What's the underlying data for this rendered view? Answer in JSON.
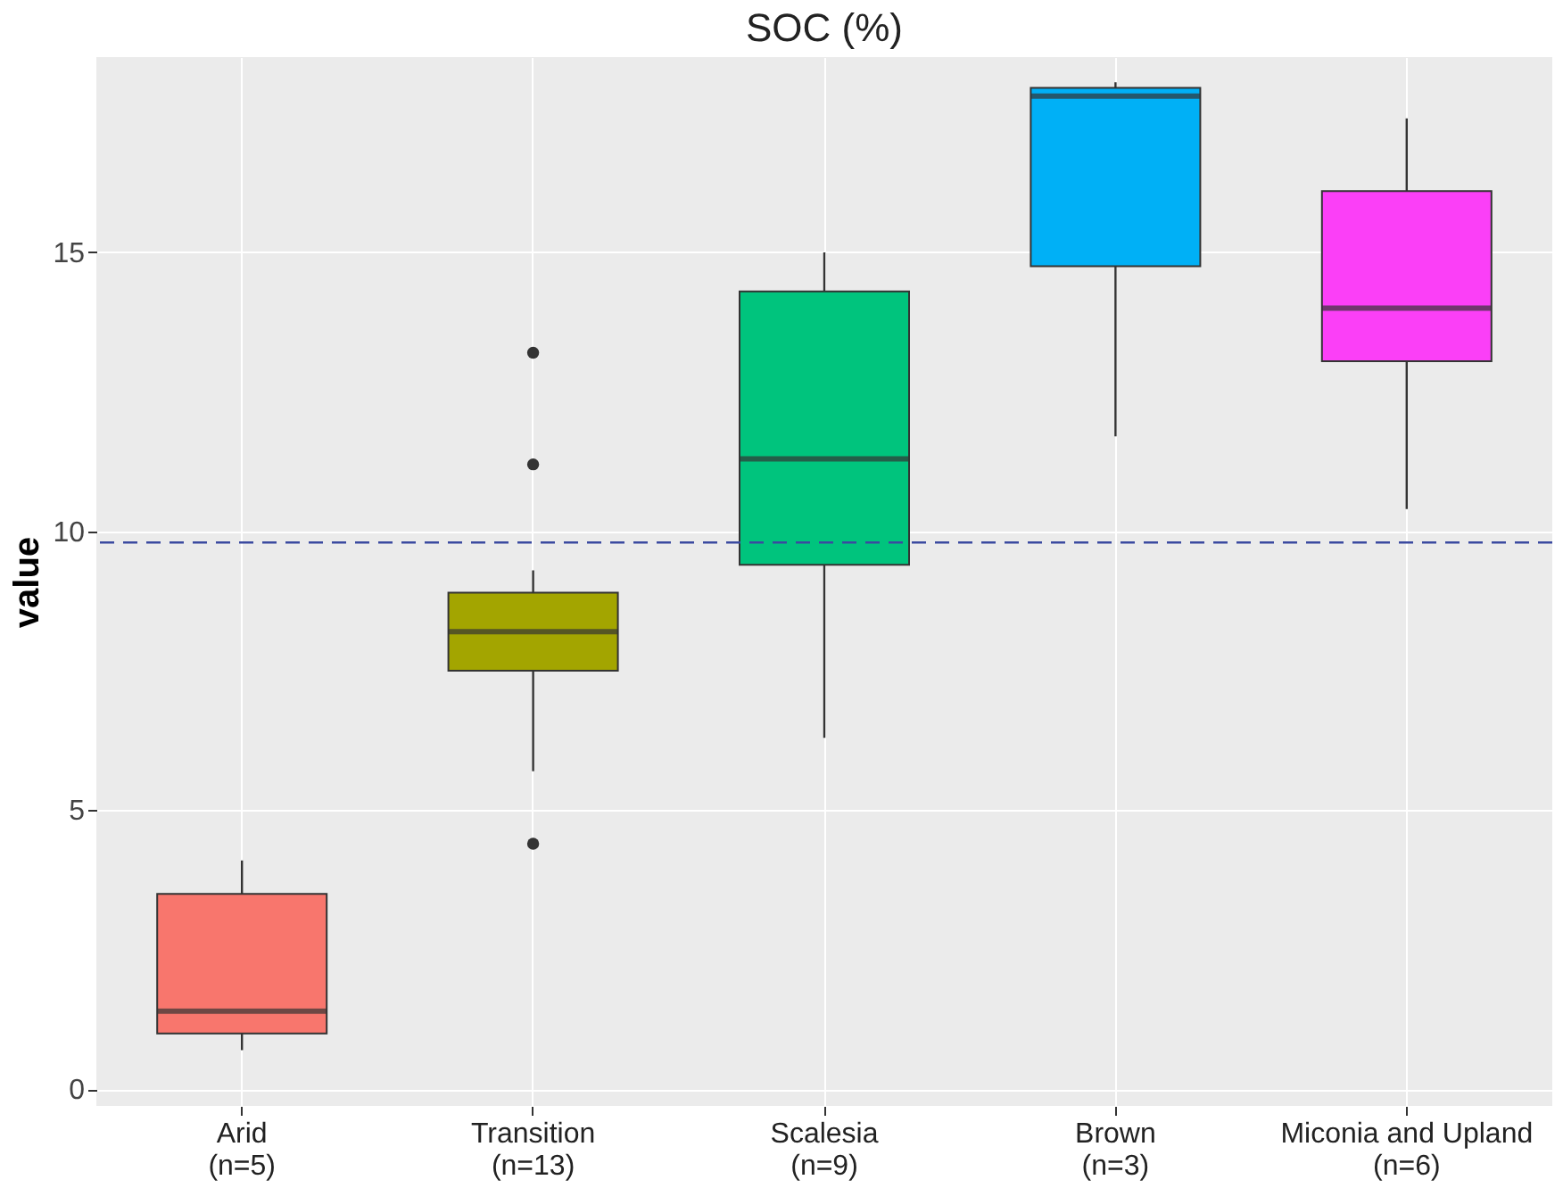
{
  "chart_data": {
    "type": "box",
    "title": "SOC (%)",
    "ylabel": "value",
    "categories": [
      "Arid\n(n=5)",
      "Transition\n(n=13)",
      "Scalesia\n(n=9)",
      "Brown\n(n=3)",
      "Miconia and Upland\n(n=6)"
    ],
    "colors": [
      "#f8766d",
      "#a3a500",
      "#00c47d",
      "#00b0f6",
      "#fb3ff7"
    ],
    "boxes": [
      {
        "low": 0.7,
        "q1": 1.0,
        "median": 1.4,
        "q3": 3.5,
        "high": 4.1
      },
      {
        "low": 5.7,
        "q1": 7.5,
        "median": 8.2,
        "q3": 8.9,
        "high": 9.3,
        "outliers": [
          13.2,
          11.2,
          4.4
        ]
      },
      {
        "low": 6.3,
        "q1": 9.4,
        "median": 11.3,
        "q3": 14.3,
        "high": 15.0
      },
      {
        "low": 11.7,
        "q1": 14.75,
        "median": 17.8,
        "q3": 17.95,
        "high": 18.05
      },
      {
        "low": 10.4,
        "q1": 13.05,
        "median": 14.0,
        "q3": 16.1,
        "high": 17.4
      }
    ],
    "ref_lines": [
      {
        "axis": "y",
        "value": 9.8,
        "color": "#3b4aa0",
        "line_style": "dashed"
      }
    ],
    "ylim": [
      -0.3,
      18.5
    ],
    "yticks": [
      0,
      5,
      10,
      15
    ],
    "grid": true
  }
}
